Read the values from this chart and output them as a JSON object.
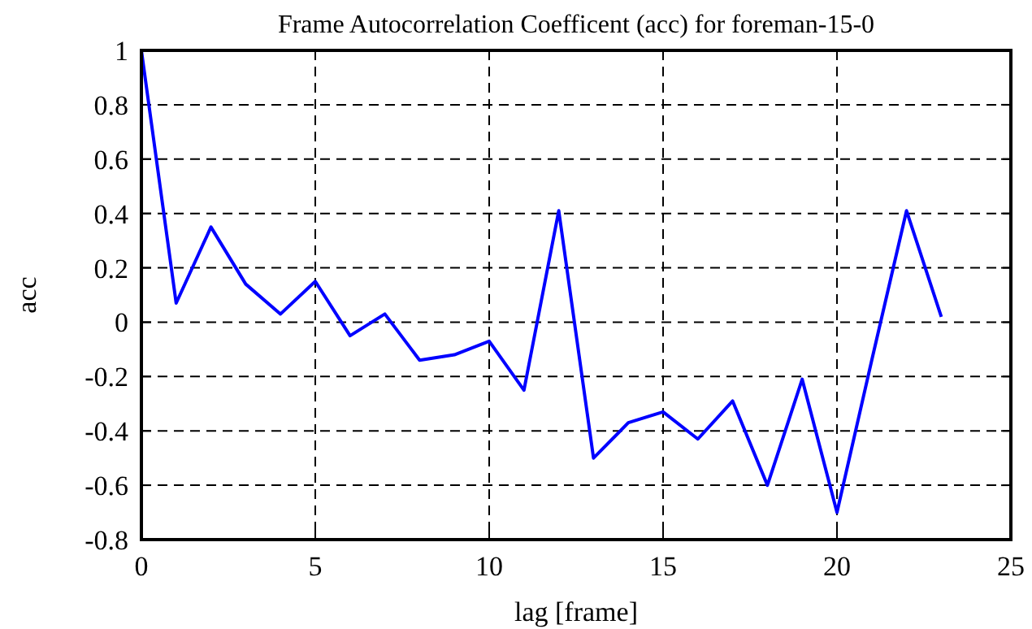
{
  "chart_data": {
    "type": "line",
    "title": "Frame Autocorrelation Coefficent (acc) for foreman-15-0",
    "xlabel": "lag [frame]",
    "ylabel": "acc",
    "x": [
      0,
      1,
      2,
      3,
      4,
      5,
      6,
      7,
      8,
      9,
      10,
      11,
      12,
      13,
      14,
      15,
      16,
      17,
      18,
      19,
      20,
      21,
      22,
      23
    ],
    "series": [
      {
        "color": "#0000ff",
        "values": [
          1,
          0.07,
          0.35,
          0.14,
          0.03,
          0.15,
          -0.05,
          0.03,
          -0.14,
          -0.12,
          -0.07,
          -0.25,
          0.41,
          -0.5,
          -0.37,
          -0.33,
          -0.43,
          -0.29,
          -0.6,
          -0.21,
          -0.7,
          -0.14,
          0.41,
          0.02
        ]
      }
    ],
    "xlim": [
      0,
      25
    ],
    "xticks": [
      0,
      5,
      10,
      15,
      20,
      25
    ],
    "ylim": [
      -0.8,
      1
    ],
    "yticks": [
      -0.8,
      -0.6,
      -0.4,
      -0.2,
      0,
      0.2,
      0.4,
      0.6,
      0.8,
      1
    ],
    "grid": true,
    "line_style": "solid",
    "marker": "none"
  }
}
